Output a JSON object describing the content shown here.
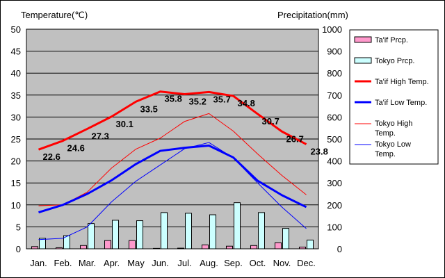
{
  "chart_data": {
    "type": "line",
    "left_axis_title": "Temperature(℃)",
    "right_axis_title": "Precipitation(mm)",
    "categories": [
      "Jan.",
      "Feb.",
      "Mar.",
      "Apr.",
      "May",
      "Jun.",
      "Jul.",
      "Aug.",
      "Sep.",
      "Oct.",
      "Nov.",
      "Dec."
    ],
    "y_left": {
      "min": 0,
      "max": 50,
      "ticks": [
        "0",
        "5",
        "10",
        "15",
        "20",
        "25",
        "30",
        "35",
        "40",
        "45",
        "50"
      ]
    },
    "y_right": {
      "min": 0,
      "max": 1000,
      "ticks": [
        "0",
        "100",
        "200",
        "300",
        "400",
        "500",
        "600",
        "700",
        "800",
        "900",
        "1000"
      ]
    },
    "grid": true,
    "legend_position": "right",
    "bar_series": [
      {
        "name": "Ta'if Prcp.",
        "color": "#ff99cc",
        "values": [
          10,
          5,
          15,
          38,
          38,
          2,
          3,
          18,
          12,
          15,
          28,
          8
        ]
      },
      {
        "name": "Tokyo Prcp.",
        "color": "#ccffff",
        "values": [
          48,
          60,
          115,
          130,
          128,
          165,
          162,
          155,
          210,
          165,
          93,
          40
        ]
      }
    ],
    "line_series": [
      {
        "name": "Ta'if High Temp.",
        "color": "#ff0000",
        "width": 3,
        "labels": true,
        "values": [
          22.6,
          24.6,
          27.3,
          30.1,
          33.5,
          35.8,
          35.2,
          35.7,
          34.8,
          30.7,
          26.7,
          23.8
        ],
        "value_labels": [
          "22.6",
          "24.6",
          "27.3",
          "30.1",
          "33.5",
          "35.8",
          "35.2",
          "35.7",
          "34.8",
          "30.7",
          "26.7",
          "23.8"
        ]
      },
      {
        "name": "Ta'if Low Temp.",
        "color": "#0000ff",
        "width": 3,
        "labels": false,
        "values": [
          8.3,
          10.0,
          12.5,
          15.6,
          19.3,
          22.3,
          23.0,
          23.5,
          20.8,
          15.5,
          12.2,
          9.5
        ]
      },
      {
        "name": "Tokyo High Temp.",
        "color": "#ff0000",
        "width": 1,
        "labels": false,
        "values": [
          9.8,
          10.0,
          12.9,
          18.4,
          22.7,
          25.2,
          29.0,
          30.8,
          26.8,
          21.6,
          16.7,
          12.3
        ]
      },
      {
        "name": "Tokyo Low Temp.",
        "color": "#0000ff",
        "width": 1,
        "labels": false,
        "values": [
          2.1,
          2.4,
          5.0,
          10.7,
          15.4,
          19.1,
          22.8,
          24.2,
          20.7,
          15.0,
          9.5,
          4.6
        ]
      }
    ],
    "legend": [
      {
        "label": "Ta'if Prcp.",
        "kind": "bar",
        "color": "#ff99cc"
      },
      {
        "label": "Tokyo Prcp.",
        "kind": "bar",
        "color": "#ccffff"
      },
      {
        "label": "Ta'if High Temp.",
        "kind": "line",
        "color": "#ff0000",
        "width": 3
      },
      {
        "label": "Ta'if Low Temp.",
        "kind": "line",
        "color": "#0000ff",
        "width": 3
      },
      {
        "label": "Tokyo High Temp.",
        "kind": "line",
        "color": "#ff0000",
        "width": 1
      },
      {
        "label": "Tokyo Low Temp.",
        "kind": "line",
        "color": "#0000ff",
        "width": 1
      }
    ]
  }
}
